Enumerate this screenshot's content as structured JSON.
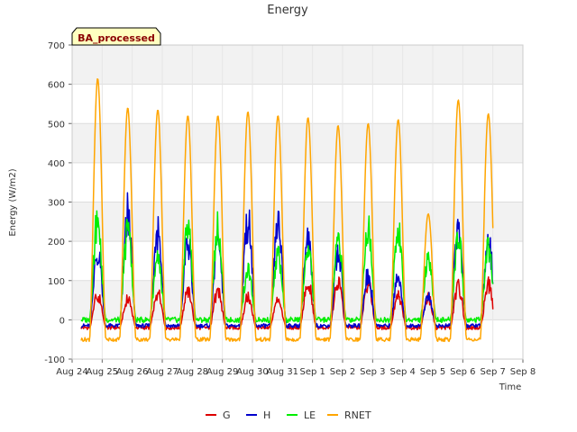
{
  "chart_data": {
    "type": "line",
    "title": "Energy",
    "xlabel": "Time",
    "ylabel": "Energy (W/m2)",
    "badge": "BA_processed",
    "ylim": [
      -100,
      700
    ],
    "yticks": [
      -100,
      0,
      100,
      200,
      300,
      400,
      500,
      600,
      700
    ],
    "xlim": [
      0,
      15
    ],
    "xtick_labels": [
      "Aug 24",
      "Aug 25",
      "Aug 26",
      "Aug 27",
      "Aug 28",
      "Aug 29",
      "Aug 30",
      "Aug 31",
      "Sep 1",
      "Sep 2",
      "Sep 3",
      "Sep 4",
      "Sep 5",
      "Sep 6",
      "Sep 7",
      "Sep 8"
    ],
    "grid": true,
    "legend_position": "bottom",
    "series_profile": {
      "x_start": 0.3,
      "x_end": 14.0,
      "samples_per_day": 48,
      "day_peak_centers": [
        0.85,
        1.85,
        2.85,
        3.85,
        4.85,
        5.85,
        6.85,
        7.85,
        8.85,
        9.85,
        10.85,
        11.85,
        12.85,
        13.85
      ]
    },
    "series": [
      {
        "name": "G",
        "color": "#dd0000",
        "night": -20,
        "daily_peaks": [
          62,
          52,
          68,
          70,
          72,
          57,
          55,
          100,
          95,
          95,
          62,
          55,
          85,
          88
        ]
      },
      {
        "name": "H",
        "color": "#0000cc",
        "night": -15,
        "daily_peaks": [
          175,
          270,
          220,
          200,
          200,
          250,
          260,
          205,
          175,
          115,
          110,
          60,
          235,
          205
        ]
      },
      {
        "name": "LE",
        "color": "#00ee00",
        "night": 0,
        "daily_peaks": [
          255,
          220,
          150,
          235,
          235,
          125,
          160,
          175,
          210,
          240,
          225,
          160,
          205,
          180
        ]
      },
      {
        "name": "RNET",
        "color": "#ffa500",
        "night": -50,
        "daily_peaks": [
          615,
          540,
          535,
          520,
          520,
          530,
          520,
          515,
          495,
          500,
          510,
          270,
          560,
          525
        ]
      }
    ]
  }
}
